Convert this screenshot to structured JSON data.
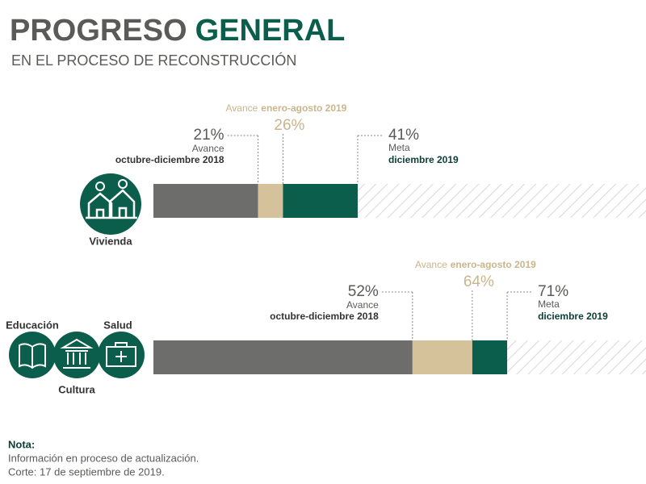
{
  "header": {
    "title_part1": "PROGRESO",
    "title_part2": "GENERAL",
    "subtitle": "EN EL PROCESO DE RECONSTRUCCIÓN"
  },
  "rows": [
    {
      "labels": [
        "Vivienda"
      ],
      "stages": [
        {
          "value": 21,
          "value_label": "21%",
          "caption": "Avance",
          "caption_bold": "octubre-diciembre 2018"
        },
        {
          "value": 26,
          "value_label": "26%",
          "caption": "Avance",
          "caption_bold": "enero-agosto 2019"
        },
        {
          "value": 41,
          "value_label": "41%",
          "caption": "Meta",
          "caption_bold": "diciembre 2019"
        }
      ]
    },
    {
      "labels": [
        "Educación",
        "Cultura",
        "Salud"
      ],
      "stages": [
        {
          "value": 52,
          "value_label": "52%",
          "caption": "Avance",
          "caption_bold": "octubre-diciembre 2018"
        },
        {
          "value": 64,
          "value_label": "64%",
          "caption": "Avance",
          "caption_bold": "enero-agosto 2019"
        },
        {
          "value": 71,
          "value_label": "71%",
          "caption": "Meta",
          "caption_bold": "diciembre 2019"
        }
      ]
    }
  ],
  "note": {
    "title": "Nota:",
    "lines": [
      "Información en proceso de actualización.",
      "Corte: 17 de septiembre de 2019."
    ]
  }
}
